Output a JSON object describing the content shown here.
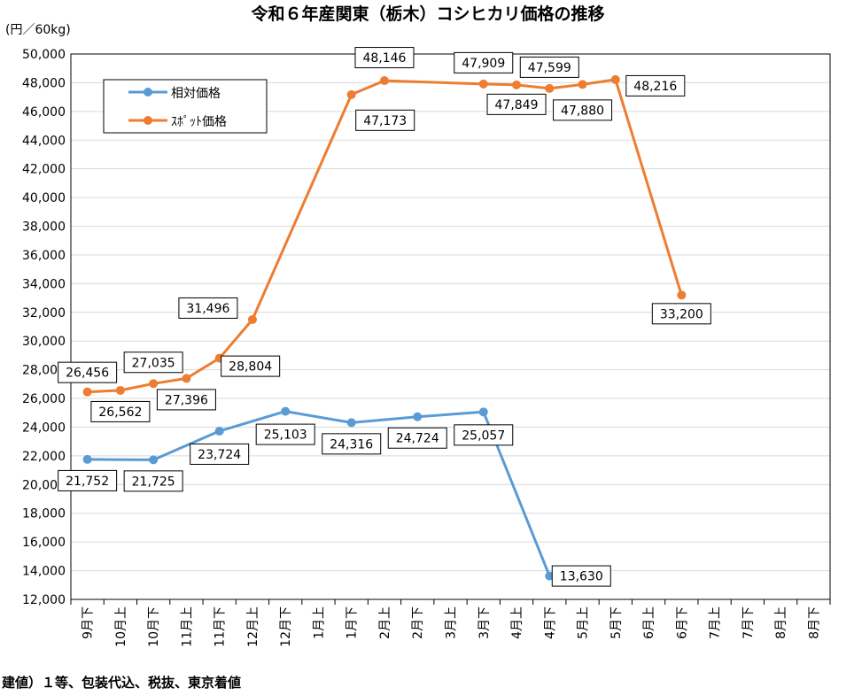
{
  "chart_data": {
    "type": "line",
    "title": "令和６年産関東（栃木）コシヒカリ価格の推移",
    "unit_label": "(円／60kg)",
    "note": "建値）１等、包装代込、税抜、東京着値",
    "ylim": [
      12000,
      50000
    ],
    "ytick_step": 2000,
    "yticks": [
      "12,000",
      "14,000",
      "16,000",
      "18,000",
      "20,000",
      "22,000",
      "24,000",
      "26,000",
      "28,000",
      "30,000",
      "32,000",
      "34,000",
      "36,000",
      "38,000",
      "40,000",
      "42,000",
      "44,000",
      "46,000",
      "48,000",
      "50,000"
    ],
    "grid": true,
    "legend_position": "top-left",
    "categories": [
      "9月下",
      "10月上",
      "10月下",
      "11月上",
      "11月下",
      "12月上",
      "12月下",
      "1月上",
      "1月下",
      "2月上",
      "2月下",
      "3月上",
      "3月下",
      "4月上",
      "4月下",
      "5月上",
      "5月下",
      "6月上",
      "6月下",
      "7月上",
      "7月下",
      "8月上",
      "8月下"
    ],
    "series": [
      {
        "name": "相対価格",
        "color": "#5b9bd5",
        "values": [
          21752,
          null,
          21725,
          null,
          23724,
          null,
          25103,
          null,
          24316,
          null,
          24724,
          null,
          25057,
          null,
          13630,
          null,
          null,
          null,
          null,
          null,
          null,
          null,
          null
        ],
        "labels": [
          "21,752",
          null,
          "21,725",
          null,
          "23,724",
          null,
          "25,103",
          null,
          "24,316",
          null,
          "24,724",
          null,
          "25,057",
          null,
          "13,630",
          null,
          null,
          null,
          null,
          null,
          null,
          null,
          null
        ]
      },
      {
        "name": "ｽﾎﾟｯﾄ価格",
        "color": "#ed7d31",
        "values": [
          26456,
          26562,
          27035,
          27396,
          28804,
          31496,
          null,
          null,
          47173,
          48146,
          null,
          null,
          47909,
          47849,
          47599,
          47880,
          48216,
          null,
          33200,
          null,
          null,
          null,
          null
        ],
        "labels": [
          "26,456",
          "26,562",
          "27,035",
          "27,396",
          "28,804",
          "31,496",
          null,
          null,
          "47,173",
          "48,146",
          null,
          null,
          "47,909",
          "47,849",
          "47,599",
          "47,880",
          "48,216",
          null,
          "33,200",
          null,
          null,
          null,
          null
        ]
      }
    ]
  }
}
